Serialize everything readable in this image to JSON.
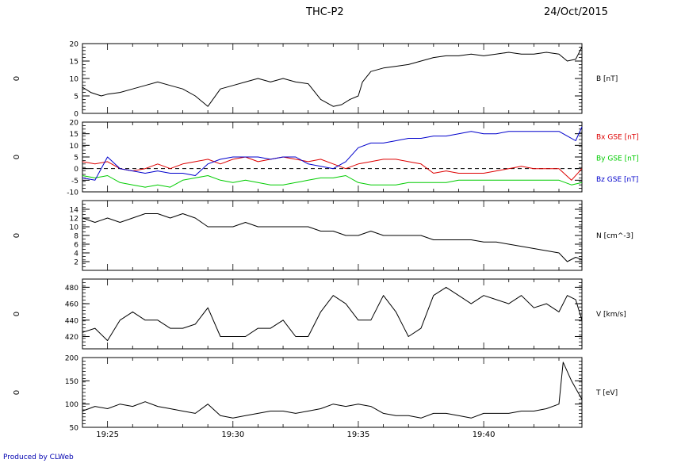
{
  "header": {
    "title": "THC-P2",
    "date": "24/Oct/2015"
  },
  "footer": {
    "text": "Produced by CLWeb"
  },
  "colors": {
    "black": "#000000",
    "red": "#dd0000",
    "green": "#00cc00",
    "blue": "#0000cc"
  },
  "chart_data": {
    "type": "line",
    "x_ticks": [
      "19:25",
      "19:30",
      "19:35",
      "19:40"
    ],
    "x_range": [
      "19:24",
      "19:43:55"
    ],
    "panels": [
      {
        "side_label": "0",
        "ylim": [
          0,
          20
        ],
        "y_ticks": [
          "0",
          "5",
          "10",
          "15",
          "20"
        ],
        "zero_dashed": true,
        "legend": [
          {
            "text": "B [nT]",
            "color": "#000000"
          }
        ],
        "series": [
          {
            "name": "B [nT]",
            "color": "#000000",
            "x": [
              "19:24",
              "19:24:20",
              "19:24:45",
              "19:25",
              "19:25:30",
              "19:26",
              "19:26:30",
              "19:27",
              "19:27:30",
              "19:28",
              "19:28:30",
              "19:29",
              "19:29:30",
              "19:30",
              "19:30:30",
              "19:31",
              "19:31:30",
              "19:32",
              "19:32:30",
              "19:33",
              "19:33:30",
              "19:34",
              "19:34:20",
              "19:34:40",
              "19:35",
              "19:35:10",
              "19:35:30",
              "19:36",
              "19:36:30",
              "19:37",
              "19:37:30",
              "19:38",
              "19:38:30",
              "19:39",
              "19:39:30",
              "19:40",
              "19:40:30",
              "19:41",
              "19:41:30",
              "19:42",
              "19:42:30",
              "19:43",
              "19:43:20",
              "19:43:40",
              "19:43:55"
            ],
            "y": [
              7.5,
              6,
              5,
              5.5,
              6,
              7,
              8,
              9,
              8,
              7,
              5,
              2,
              7,
              8,
              9,
              10,
              9,
              10,
              9,
              8.5,
              4,
              2,
              2.5,
              4,
              5,
              9,
              12,
              13,
              13.5,
              14,
              15,
              16,
              16.5,
              16.5,
              17,
              16.5,
              17,
              17.5,
              17,
              17,
              17.5,
              17,
              15,
              15.5,
              19
            ]
          }
        ]
      },
      {
        "side_label": "0",
        "ylim": [
          -10,
          20
        ],
        "y_ticks": [
          "-10",
          "-5",
          "0",
          "5",
          "10",
          "15",
          "20"
        ],
        "zero_dashed": true,
        "legend": [
          {
            "text": "Bx GSE [nT]",
            "color": "#dd0000"
          },
          {
            "text": "By GSE [nT]",
            "color": "#00cc00"
          },
          {
            "text": "Bz GSE [nT]",
            "color": "#0000cc"
          }
        ],
        "series": [
          {
            "name": "Bx GSE [nT]",
            "color": "#dd0000",
            "x": [
              "19:24",
              "19:24:30",
              "19:25",
              "19:25:30",
              "19:26",
              "19:26:30",
              "19:27",
              "19:27:30",
              "19:28",
              "19:28:30",
              "19:29",
              "19:29:30",
              "19:30",
              "19:30:30",
              "19:31",
              "19:31:30",
              "19:32",
              "19:32:30",
              "19:33",
              "19:33:30",
              "19:34",
              "19:34:30",
              "19:35",
              "19:35:30",
              "19:36",
              "19:36:30",
              "19:37",
              "19:37:30",
              "19:38",
              "19:38:30",
              "19:39",
              "19:39:30",
              "19:40",
              "19:40:30",
              "19:41",
              "19:41:30",
              "19:42",
              "19:42:30",
              "19:43",
              "19:43:30",
              "19:43:55"
            ],
            "y": [
              3,
              2,
              3,
              0,
              -1,
              0,
              2,
              0,
              2,
              3,
              4,
              2,
              4,
              5,
              3,
              4,
              5,
              4,
              3,
              4,
              2,
              0,
              2,
              3,
              4,
              4,
              3,
              2,
              -2,
              -1,
              -2,
              -2,
              -2,
              -1,
              0,
              1,
              0,
              0,
              0,
              -5,
              0
            ]
          },
          {
            "name": "By GSE [nT]",
            "color": "#00cc00",
            "x": [
              "19:24",
              "19:24:30",
              "19:25",
              "19:25:30",
              "19:26",
              "19:26:30",
              "19:27",
              "19:27:30",
              "19:28",
              "19:28:30",
              "19:29",
              "19:29:30",
              "19:30",
              "19:30:30",
              "19:31",
              "19:31:30",
              "19:32",
              "19:32:30",
              "19:33",
              "19:33:30",
              "19:34",
              "19:34:30",
              "19:35",
              "19:35:30",
              "19:36",
              "19:36:30",
              "19:37",
              "19:37:30",
              "19:38",
              "19:38:30",
              "19:39",
              "19:39:30",
              "19:40",
              "19:40:30",
              "19:41",
              "19:41:30",
              "19:42",
              "19:42:30",
              "19:43",
              "19:43:30",
              "19:43:55"
            ],
            "y": [
              -3,
              -4,
              -3,
              -6,
              -7,
              -8,
              -7,
              -8,
              -5,
              -4,
              -3,
              -5,
              -6,
              -5,
              -6,
              -7,
              -7,
              -6,
              -5,
              -4,
              -4,
              -3,
              -6,
              -7,
              -7,
              -7,
              -6,
              -6,
              -6,
              -6,
              -5,
              -5,
              -5,
              -5,
              -5,
              -5,
              -5,
              -5,
              -5,
              -7,
              -6
            ]
          },
          {
            "name": "Bz GSE [nT]",
            "color": "#0000cc",
            "x": [
              "19:24",
              "19:24:30",
              "19:25",
              "19:25:30",
              "19:26",
              "19:26:30",
              "19:27",
              "19:27:30",
              "19:28",
              "19:28:30",
              "19:29",
              "19:29:30",
              "19:30",
              "19:30:30",
              "19:31",
              "19:31:30",
              "19:32",
              "19:32:30",
              "19:33",
              "19:33:30",
              "19:34",
              "19:34:30",
              "19:35",
              "19:35:30",
              "19:36",
              "19:36:30",
              "19:37",
              "19:37:30",
              "19:38",
              "19:38:30",
              "19:39",
              "19:39:30",
              "19:40",
              "19:40:30",
              "19:41",
              "19:41:30",
              "19:42",
              "19:42:30",
              "19:43",
              "19:43:20",
              "19:43:40",
              "19:43:55"
            ],
            "y": [
              -4,
              -5,
              5,
              0,
              -1,
              -2,
              -1,
              -2,
              -2,
              -3,
              2,
              4,
              5,
              5,
              5,
              4,
              5,
              5,
              2,
              1,
              0,
              3,
              9,
              11,
              11,
              12,
              13,
              13,
              14,
              14,
              15,
              16,
              15,
              15,
              16,
              16,
              16,
              16,
              16,
              14,
              12,
              18
            ]
          }
        ]
      },
      {
        "side_label": "0",
        "ylim": [
          0,
          16
        ],
        "y_ticks": [
          "2",
          "4",
          "6",
          "8",
          "10",
          "12",
          "14"
        ],
        "zero_dashed": false,
        "legend": [
          {
            "text": "N [cm^-3]",
            "color": "#000000"
          }
        ],
        "series": [
          {
            "name": "N [cm^-3]",
            "color": "#000000",
            "x": [
              "19:24",
              "19:24:30",
              "19:25",
              "19:25:30",
              "19:26",
              "19:26:30",
              "19:27",
              "19:27:30",
              "19:28",
              "19:28:30",
              "19:29",
              "19:29:30",
              "19:30",
              "19:30:30",
              "19:31",
              "19:31:30",
              "19:32",
              "19:32:30",
              "19:33",
              "19:33:30",
              "19:34",
              "19:34:30",
              "19:35",
              "19:35:30",
              "19:36",
              "19:36:30",
              "19:37",
              "19:37:30",
              "19:38",
              "19:38:30",
              "19:39",
              "19:39:30",
              "19:40",
              "19:40:30",
              "19:41",
              "19:41:30",
              "19:42",
              "19:42:30",
              "19:43",
              "19:43:20",
              "19:43:40",
              "19:43:55"
            ],
            "y": [
              12,
              11,
              12,
              11,
              12,
              13,
              13,
              12,
              13,
              12,
              10,
              10,
              10,
              11,
              10,
              10,
              10,
              10,
              10,
              9,
              9,
              8,
              8,
              9,
              8,
              8,
              8,
              8,
              7,
              7,
              7,
              7,
              6.5,
              6.5,
              6,
              5.5,
              5,
              4.5,
              4,
              2,
              3,
              2.5
            ]
          }
        ]
      },
      {
        "side_label": "0",
        "ylim": [
          405,
          490
        ],
        "y_ticks": [
          "420",
          "440",
          "460",
          "480"
        ],
        "zero_dashed": false,
        "legend": [
          {
            "text": "V [km/s]",
            "color": "#000000"
          }
        ],
        "series": [
          {
            "name": "V [km/s]",
            "color": "#000000",
            "x": [
              "19:24",
              "19:24:30",
              "19:25",
              "19:25:30",
              "19:26",
              "19:26:30",
              "19:27",
              "19:27:30",
              "19:28",
              "19:28:30",
              "19:29",
              "19:29:30",
              "19:30",
              "19:30:30",
              "19:31",
              "19:31:30",
              "19:32",
              "19:32:30",
              "19:33",
              "19:33:30",
              "19:34",
              "19:34:30",
              "19:35",
              "19:35:30",
              "19:36",
              "19:36:30",
              "19:37",
              "19:37:30",
              "19:38",
              "19:38:30",
              "19:39",
              "19:39:30",
              "19:40",
              "19:40:30",
              "19:41",
              "19:41:30",
              "19:42",
              "19:42:30",
              "19:43",
              "19:43:20",
              "19:43:40",
              "19:43:55"
            ],
            "y": [
              425,
              430,
              415,
              440,
              450,
              440,
              440,
              430,
              430,
              435,
              455,
              420,
              420,
              420,
              430,
              430,
              440,
              420,
              420,
              450,
              470,
              460,
              440,
              440,
              470,
              450,
              420,
              430,
              470,
              480,
              470,
              460,
              470,
              465,
              460,
              470,
              455,
              460,
              450,
              470,
              465,
              440
            ]
          }
        ]
      },
      {
        "side_label": "0",
        "ylim": [
          50,
          200
        ],
        "y_ticks": [
          "50",
          "100",
          "150",
          "200"
        ],
        "zero_dashed": false,
        "legend": [
          {
            "text": "T [eV]",
            "color": "#000000"
          }
        ],
        "series": [
          {
            "name": "T [eV]",
            "color": "#000000",
            "x": [
              "19:24",
              "19:24:30",
              "19:25",
              "19:25:30",
              "19:26",
              "19:26:30",
              "19:27",
              "19:27:30",
              "19:28",
              "19:28:30",
              "19:29",
              "19:29:30",
              "19:30",
              "19:30:30",
              "19:31",
              "19:31:30",
              "19:32",
              "19:32:30",
              "19:33",
              "19:33:30",
              "19:34",
              "19:34:30",
              "19:35",
              "19:35:30",
              "19:36",
              "19:36:30",
              "19:37",
              "19:37:30",
              "19:38",
              "19:38:30",
              "19:39",
              "19:39:30",
              "19:40",
              "19:40:30",
              "19:41",
              "19:41:30",
              "19:42",
              "19:42:30",
              "19:43",
              "19:43:10",
              "19:43:30",
              "19:43:55"
            ],
            "y": [
              85,
              95,
              90,
              100,
              95,
              105,
              95,
              90,
              85,
              80,
              100,
              75,
              70,
              75,
              80,
              85,
              85,
              80,
              85,
              90,
              100,
              95,
              100,
              95,
              80,
              75,
              75,
              70,
              80,
              80,
              75,
              70,
              80,
              80,
              80,
              85,
              85,
              90,
              100,
              190,
              150,
              110
            ]
          }
        ]
      }
    ]
  }
}
